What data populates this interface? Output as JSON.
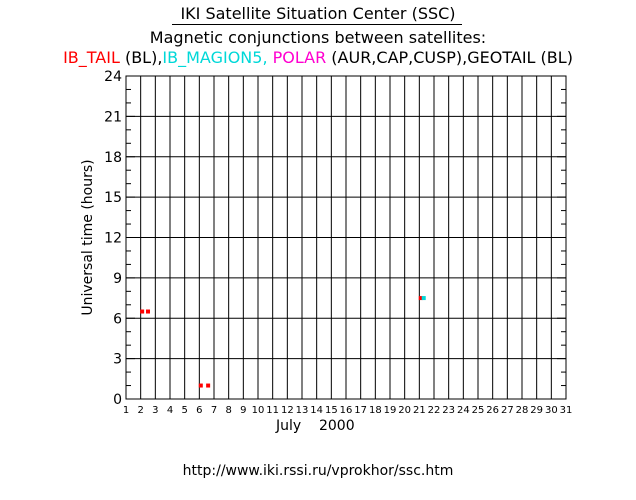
{
  "header": {
    "title": "IKI Satellite Situation Center (SSC)",
    "subtitle": "Magnetic conjunctions between satellites:"
  },
  "legend": {
    "items": [
      {
        "name": "IB_TAIL",
        "color": "#ff0000"
      },
      {
        "name": " (BL),",
        "color": "#000000"
      },
      {
        "name": "IB_MAGION5,",
        "color": "#00d8d8"
      },
      {
        "name": " POLAR",
        "color": "#ff00d0"
      },
      {
        "name": " (AUR,CAP,CUSP),GEOTAIL (BL)",
        "color": "#000000"
      }
    ]
  },
  "footer": {
    "month": "July    2000",
    "url": "http://www.iki.rssi.ru/vprokhor/ssc.htm"
  },
  "chart_data": {
    "type": "scatter",
    "ylabel": "Universal time  (hours)",
    "xlim": [
      1,
      31
    ],
    "ylim": [
      0,
      24
    ],
    "x_ticks": [
      1,
      2,
      3,
      4,
      5,
      6,
      7,
      8,
      9,
      10,
      11,
      12,
      13,
      14,
      15,
      16,
      17,
      18,
      19,
      20,
      21,
      22,
      23,
      24,
      25,
      26,
      27,
      28,
      29,
      30,
      31
    ],
    "y_ticks": [
      0,
      3,
      6,
      9,
      12,
      15,
      18,
      21,
      24
    ],
    "grid": true,
    "series": [
      {
        "color": "#ff0000",
        "points": [
          [
            2.1,
            6.5
          ],
          [
            2.5,
            6.5
          ],
          [
            6.1,
            1.0
          ],
          [
            6.6,
            1.0
          ],
          [
            21.1,
            7.5
          ]
        ]
      },
      {
        "color": "#00d8d8",
        "points": [
          [
            21.3,
            7.5
          ]
        ]
      }
    ]
  }
}
